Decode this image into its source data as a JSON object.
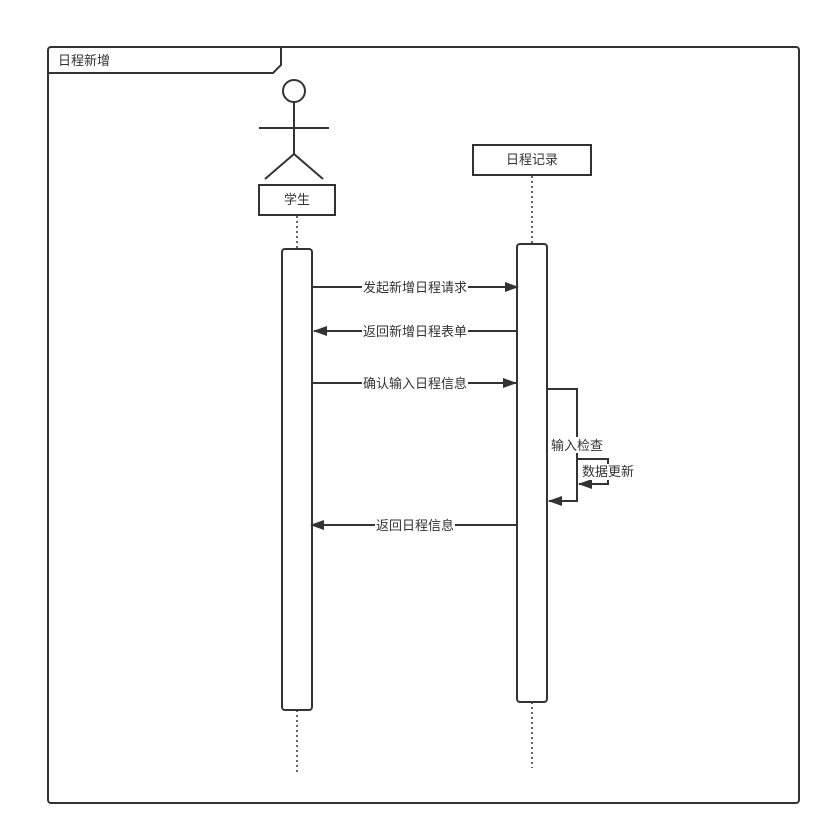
{
  "frame": {
    "title": "日程新增"
  },
  "participants": {
    "student": {
      "label": "学生"
    },
    "schedule": {
      "label": "日程记录"
    }
  },
  "messages": {
    "m1": "发起新增日程请求",
    "m2": "返回新增日程表单",
    "m3": "确认输入日程信息",
    "m4": "输入检查",
    "m5": "数据更新",
    "m6": "返回日程信息"
  },
  "colors": {
    "line": "#333333",
    "background": "#ffffff"
  }
}
